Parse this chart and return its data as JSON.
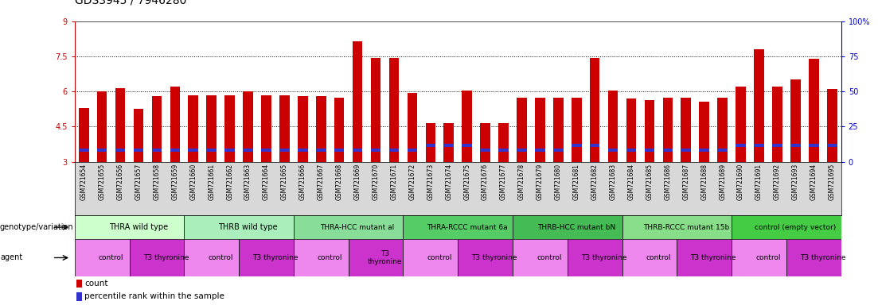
{
  "title": "GDS3945 / 7946280",
  "samples": [
    "GSM721654",
    "GSM721655",
    "GSM721656",
    "GSM721657",
    "GSM721658",
    "GSM721659",
    "GSM721660",
    "GSM721661",
    "GSM721662",
    "GSM721663",
    "GSM721664",
    "GSM721665",
    "GSM721666",
    "GSM721667",
    "GSM721668",
    "GSM721669",
    "GSM721670",
    "GSM721671",
    "GSM721672",
    "GSM721673",
    "GSM721674",
    "GSM721675",
    "GSM721676",
    "GSM721677",
    "GSM721678",
    "GSM721679",
    "GSM721680",
    "GSM721681",
    "GSM721682",
    "GSM721683",
    "GSM721684",
    "GSM721685",
    "GSM721686",
    "GSM721687",
    "GSM721688",
    "GSM721689",
    "GSM721690",
    "GSM721691",
    "GSM721692",
    "GSM721693",
    "GSM721694",
    "GSM721695"
  ],
  "bar_values": [
    5.3,
    6.0,
    6.15,
    5.25,
    5.8,
    6.2,
    5.85,
    5.85,
    5.85,
    6.0,
    5.85,
    5.85,
    5.8,
    5.8,
    5.75,
    8.15,
    7.45,
    7.45,
    5.95,
    4.65,
    4.65,
    6.05,
    4.65,
    4.65,
    5.75,
    5.75,
    5.75,
    5.75,
    7.45,
    6.05,
    5.7,
    5.65,
    5.75,
    5.75,
    5.55,
    5.75,
    6.2,
    7.8,
    6.2,
    6.5,
    7.4,
    6.1
  ],
  "blue_values": [
    3.5,
    3.5,
    3.5,
    3.5,
    3.5,
    3.5,
    3.5,
    3.5,
    3.5,
    3.5,
    3.5,
    3.5,
    3.5,
    3.5,
    3.5,
    3.5,
    3.5,
    3.5,
    3.5,
    3.7,
    3.7,
    3.7,
    3.5,
    3.5,
    3.5,
    3.5,
    3.5,
    3.7,
    3.7,
    3.5,
    3.5,
    3.5,
    3.5,
    3.5,
    3.5,
    3.5,
    3.7,
    3.7,
    3.7,
    3.7,
    3.7,
    3.7
  ],
  "ymin": 3,
  "ymax": 9,
  "yticks": [
    3,
    4.5,
    6,
    7.5,
    9
  ],
  "ytick_labels": [
    "3",
    "4.5",
    "6",
    "7.5",
    "9"
  ],
  "hlines": [
    4.5,
    6.0,
    7.5
  ],
  "right_yticks": [
    0,
    25,
    50,
    75,
    100
  ],
  "right_ytick_labels": [
    "0",
    "25",
    "50",
    "75",
    "100%"
  ],
  "bar_color": "#cc0000",
  "blue_color": "#3333cc",
  "genotype_groups": [
    {
      "label": "THRA wild type",
      "start": 0,
      "end": 6,
      "color": "#ccffcc"
    },
    {
      "label": "THRB wild type",
      "start": 6,
      "end": 12,
      "color": "#aaeebb"
    },
    {
      "label": "THRA-HCC mutant al",
      "start": 12,
      "end": 18,
      "color": "#88dd99"
    },
    {
      "label": "THRA-RCCC mutant 6a",
      "start": 18,
      "end": 24,
      "color": "#55cc66"
    },
    {
      "label": "THRB-HCC mutant bN",
      "start": 24,
      "end": 30,
      "color": "#44bb55"
    },
    {
      "label": "THRB-RCCC mutant 15b",
      "start": 30,
      "end": 36,
      "color": "#88dd88"
    },
    {
      "label": "control (empty vector)",
      "start": 36,
      "end": 42,
      "color": "#44cc44"
    }
  ],
  "agent_groups": [
    {
      "label": "control",
      "start": 0,
      "end": 3,
      "color": "#ee88ee"
    },
    {
      "label": "T3 thyronine",
      "start": 3,
      "end": 6,
      "color": "#cc33cc"
    },
    {
      "label": "control",
      "start": 6,
      "end": 9,
      "color": "#ee88ee"
    },
    {
      "label": "T3 thyronine",
      "start": 9,
      "end": 12,
      "color": "#cc33cc"
    },
    {
      "label": "control",
      "start": 12,
      "end": 15,
      "color": "#ee88ee"
    },
    {
      "label": "T3\nthyronine",
      "start": 15,
      "end": 18,
      "color": "#cc33cc"
    },
    {
      "label": "control",
      "start": 18,
      "end": 21,
      "color": "#ee88ee"
    },
    {
      "label": "T3 thyronine",
      "start": 21,
      "end": 24,
      "color": "#cc33cc"
    },
    {
      "label": "control",
      "start": 24,
      "end": 27,
      "color": "#ee88ee"
    },
    {
      "label": "T3 thyronine",
      "start": 27,
      "end": 30,
      "color": "#cc33cc"
    },
    {
      "label": "control",
      "start": 30,
      "end": 33,
      "color": "#ee88ee"
    },
    {
      "label": "T3 thyronine",
      "start": 33,
      "end": 36,
      "color": "#cc33cc"
    },
    {
      "label": "control",
      "start": 36,
      "end": 39,
      "color": "#ee88ee"
    },
    {
      "label": "T3 thyronine",
      "start": 39,
      "end": 42,
      "color": "#cc33cc"
    }
  ],
  "bar_width": 0.55,
  "bg_color": "#ffffff",
  "axis_color_left": "#cc0000",
  "axis_color_right": "#0000cc",
  "title_fontsize": 10,
  "tick_fontsize": 7,
  "xlabels_fontsize": 5.5,
  "row_label_fontsize": 7,
  "annotation_fontsize": 6.5,
  "legend_fontsize": 7.5
}
